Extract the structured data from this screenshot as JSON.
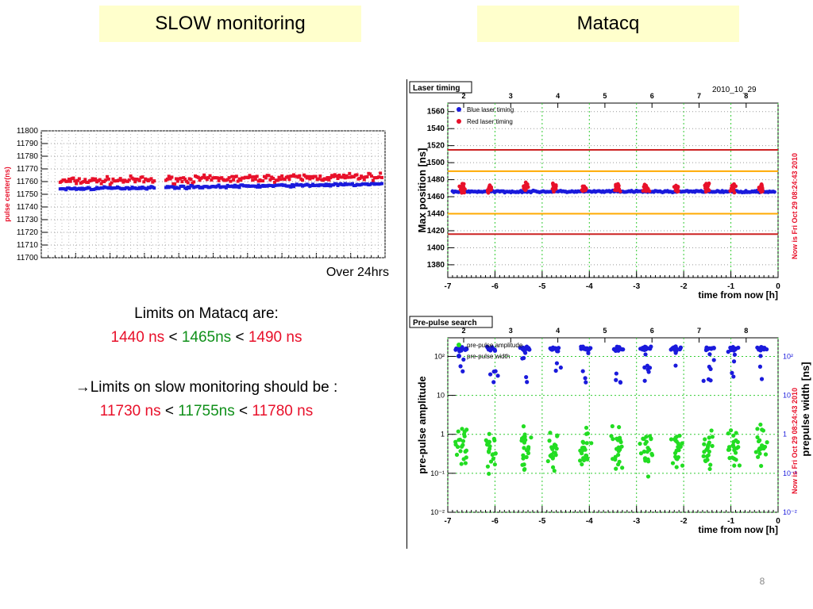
{
  "headers": {
    "left": "SLOW monitoring",
    "right": "Matacq"
  },
  "slow_caption": "Over 24hrs",
  "limits": {
    "matacq_title": "Limits on  Matacq are:",
    "matacq_lo": "1440 ns",
    "matacq_mid": "1465ns",
    "matacq_hi": "1490 ns",
    "slow_title": "→Limits on slow monitoring should be :",
    "slow_lo": "11730 ns",
    "slow_mid": "11755ns",
    "slow_hi": "11780 ns",
    "lt": "<"
  },
  "page_number": "8",
  "colors": {
    "red": "#e8102a",
    "blue": "#1a1adc",
    "green": "#22dd22",
    "orange": "#ffaa00",
    "limit_red": "#cc2222",
    "header_bg": "#ffffcc"
  },
  "chart_data": [
    {
      "type": "scatter",
      "ylabel": "pulse center(ns)",
      "yticks": [
        "11800",
        "11790",
        "11780",
        "11770",
        "11760",
        "11750",
        "11740",
        "11730",
        "11720",
        "11710",
        "11700"
      ],
      "ylim": [
        11700,
        11800
      ],
      "caption": "Over 24hrs",
      "series": [
        {
          "name": "red",
          "color": "#e8102a",
          "approx_center": 11760
        },
        {
          "name": "blue",
          "color": "#1a1adc",
          "approx_center": 11754
        }
      ],
      "gap_fraction": [
        0.33,
        0.36
      ]
    },
    {
      "type": "scatter",
      "title": "Laser timing",
      "date": "2010_10_29",
      "ylabel": "Max position [ns]",
      "xlabel": "time from now [h]",
      "xticks": [
        "-7",
        "-6",
        "-5",
        "-4",
        "-3",
        "-2",
        "-1",
        "0"
      ],
      "topticks": [
        "2",
        "3",
        "4",
        "5",
        "6",
        "7",
        "8"
      ],
      "yticks": [
        "1560",
        "1540",
        "1520",
        "1500",
        "1480",
        "1460",
        "1440",
        "1420",
        "1400",
        "1380"
      ],
      "ylim": [
        1365,
        1570
      ],
      "legend": [
        "Blue laser timing",
        "Red laser timing"
      ],
      "hlines": [
        {
          "y": 1515,
          "color": "#cc2222"
        },
        {
          "y": 1490,
          "color": "#ffaa00"
        },
        {
          "y": 1440,
          "color": "#ffaa00"
        },
        {
          "y": 1416,
          "color": "#cc2222"
        }
      ],
      "series": [
        {
          "name": "Blue laser timing",
          "color": "#1a1adc",
          "approx_center": 1466
        },
        {
          "name": "Red laser timing",
          "color": "#e8102a",
          "approx_center": 1467
        }
      ],
      "right_label": "Now is Fri Oct 29 08:24:43 2010"
    },
    {
      "type": "scatter",
      "title": "Pre-pulse search",
      "ylabel": "pre-pulse amplitude",
      "ylabel_right": "prepulse width [ns]",
      "xlabel": "time from now [h]",
      "xticks": [
        "-7",
        "-6",
        "-5",
        "-4",
        "-3",
        "-2",
        "-1",
        "0"
      ],
      "topticks": [
        "2",
        "3",
        "4",
        "5",
        "6",
        "7",
        "8"
      ],
      "yscale": "log",
      "ylim": [
        0.01,
        300
      ],
      "legend": [
        "pre-pulse amplitude",
        "pre-pulse width"
      ],
      "series": [
        {
          "name": "pre-pulse amplitude",
          "color": "#22dd22",
          "approx_center": 0.4
        },
        {
          "name": "pre-pulse width",
          "color": "#1a1adc",
          "approx_center": 150
        }
      ],
      "right_label": "Now is Fri Oct 29 08:24:43 2010"
    }
  ]
}
